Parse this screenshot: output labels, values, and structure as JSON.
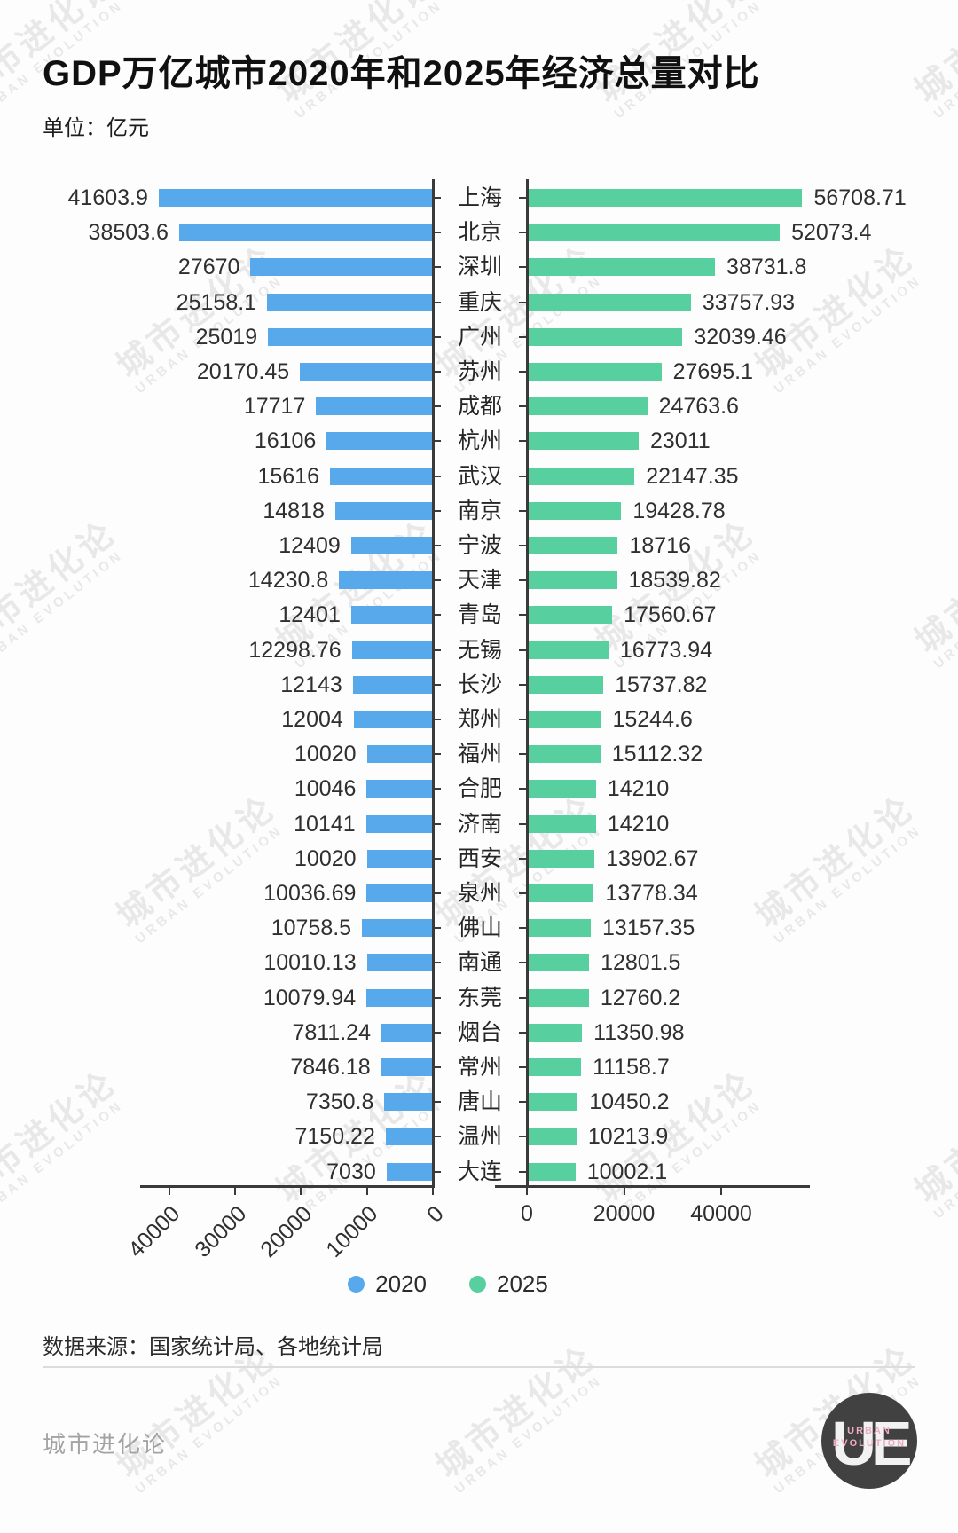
{
  "header": {
    "title": "GDP万亿城市2020年和2025年经济总量对比",
    "unit_label": "单位：亿元"
  },
  "chart_data": {
    "type": "bar",
    "orientation": "bidirectional-horizontal",
    "title": "GDP万亿城市2020年和2025年经济总量对比",
    "unit": "亿元",
    "categories": [
      "上海",
      "北京",
      "深圳",
      "重庆",
      "广州",
      "苏州",
      "成都",
      "杭州",
      "武汉",
      "南京",
      "宁波",
      "天津",
      "青岛",
      "无锡",
      "长沙",
      "郑州",
      "福州",
      "合肥",
      "济南",
      "西安",
      "泉州",
      "佛山",
      "南通",
      "东莞",
      "烟台",
      "常州",
      "唐山",
      "温州",
      "大连"
    ],
    "series": [
      {
        "name": "2020",
        "color": "#58a9ec",
        "values": [
          41603.9,
          38503.6,
          27670,
          25158.1,
          25019,
          20170.45,
          17717,
          16106,
          15616,
          14818,
          12409,
          14230.8,
          12401,
          12298.76,
          12143,
          12004,
          10020,
          10046,
          10141,
          10020,
          10036.69,
          10758.5,
          10010.13,
          10079.94,
          7811.24,
          7846.18,
          7350.8,
          7150.22,
          7030
        ]
      },
      {
        "name": "2025",
        "color": "#57cf9e",
        "values": [
          56708.71,
          52073.4,
          38731.8,
          33757.93,
          32039.46,
          27695.1,
          24763.6,
          23011,
          22147.35,
          19428.78,
          18716,
          18539.82,
          17560.67,
          16773.94,
          15737.82,
          15244.6,
          15112.32,
          14210,
          14210,
          13902.67,
          13778.34,
          13157.35,
          12801.5,
          12760.2,
          11350.98,
          11158.7,
          10450.2,
          10213.9,
          10002.1
        ]
      }
    ],
    "left_axis_ticks": [
      40000,
      30000,
      20000,
      10000,
      0
    ],
    "right_axis_ticks": [
      0,
      20000,
      40000
    ],
    "legend_position": "bottom-center",
    "grid": false
  },
  "legend": {
    "items": [
      {
        "label": "2020",
        "color": "#58a9ec"
      },
      {
        "label": "2025",
        "color": "#57cf9e"
      }
    ]
  },
  "footer": {
    "source": "数据来源：国家统计局、各地统计局",
    "brand": "城市进化论"
  },
  "logo": {
    "monogram": "UE",
    "line1": "URBAN",
    "line2": "EVOLUTION"
  },
  "watermark": {
    "line1": "城市进化论",
    "line2": "URBAN EVOLUTION"
  }
}
